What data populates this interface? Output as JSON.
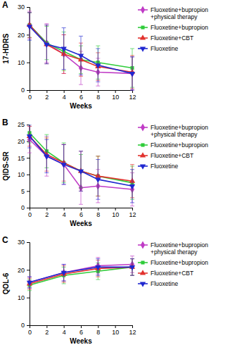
{
  "chart_data": [
    {
      "type": "line",
      "title": "A",
      "x_label": "Weeks",
      "y_label": "17-HDRS",
      "x": [
        0,
        2,
        4,
        6,
        8,
        12
      ],
      "xlim": [
        0,
        12
      ],
      "xticks": [
        0,
        2,
        4,
        6,
        8,
        10,
        12
      ],
      "ylim": [
        0,
        30
      ],
      "yticks": [
        0,
        10,
        20,
        30
      ],
      "grid": false,
      "legend": "right",
      "series": [
        {
          "name": "Fluoxetine+bupropion+physical therapy",
          "color": "#c03cc6",
          "marker": "diamond",
          "values": [
            23.5,
            17,
            13,
            8,
            6.5,
            6
          ],
          "errors": [
            5,
            7,
            7,
            6,
            5,
            6
          ]
        },
        {
          "name": "Fluoxetine+bupropion",
          "color": "#2fcc3a",
          "marker": "square",
          "values": [
            23.5,
            17,
            14,
            11,
            10,
            8
          ],
          "errors": [
            4.5,
            6,
            7,
            5,
            6,
            7
          ]
        },
        {
          "name": "Fluoxetine+CBT",
          "color": "#e2322e",
          "marker": "triangle",
          "values": [
            23.5,
            16.5,
            13,
            11,
            8.5,
            6.5
          ],
          "errors": [
            4.5,
            7,
            7,
            6,
            5,
            6
          ]
        },
        {
          "name": "Fluoxetine",
          "color": "#2028d0",
          "marker": "triangle-down",
          "values": [
            23,
            16.5,
            15,
            12.5,
            9,
            6
          ],
          "errors": [
            5,
            7,
            7.5,
            7,
            6,
            6
          ]
        }
      ]
    },
    {
      "type": "line",
      "title": "B",
      "x_label": "Weeks",
      "y_label": "QIDS-SR",
      "x": [
        0,
        2,
        4,
        6,
        8,
        12
      ],
      "xlim": [
        0,
        12
      ],
      "xticks": [
        0,
        2,
        4,
        6,
        8,
        10,
        12
      ],
      "ylim": [
        0,
        25
      ],
      "yticks": [
        0,
        5,
        10,
        15,
        20,
        25
      ],
      "grid": false,
      "legend": "right",
      "series": [
        {
          "name": "Fluoxetine+bupropion+physical therapy",
          "color": "#c03cc6",
          "marker": "diamond",
          "values": [
            20.5,
            15.5,
            13,
            6,
            6.5,
            5.5
          ],
          "errors": [
            4,
            6,
            6,
            5,
            5,
            5
          ]
        },
        {
          "name": "Fluoxetine+bupropion",
          "color": "#2fcc3a",
          "marker": "square",
          "values": [
            22.5,
            17,
            13.5,
            11,
            9.5,
            7.5
          ],
          "errors": [
            3,
            5,
            6,
            5,
            6,
            5
          ]
        },
        {
          "name": "Fluoxetine+CBT",
          "color": "#e2322e",
          "marker": "triangle",
          "values": [
            21.5,
            16,
            13.5,
            11,
            9.5,
            8
          ],
          "errors": [
            3,
            5,
            5.5,
            6,
            6,
            5
          ]
        },
        {
          "name": "Fluoxetine",
          "color": "#2028d0",
          "marker": "triangle-down",
          "values": [
            21.5,
            15.5,
            13,
            11,
            8.5,
            6.5
          ],
          "errors": [
            3.5,
            5,
            6,
            6,
            6,
            5
          ]
        }
      ]
    },
    {
      "type": "line",
      "title": "C",
      "x_label": "Weeks",
      "y_label": "QOL-6",
      "x": [
        0,
        4,
        8,
        12
      ],
      "xlim": [
        0,
        12
      ],
      "xticks": [
        0,
        2,
        4,
        6,
        8,
        10,
        12
      ],
      "ylim": [
        0,
        30
      ],
      "yticks": [
        0,
        10,
        20,
        30
      ],
      "grid": false,
      "legend": "right",
      "series": [
        {
          "name": "Fluoxetine+bupropion+physical therapy",
          "color": "#c03cc6",
          "marker": "diamond",
          "values": [
            15.5,
            19,
            21.5,
            22
          ],
          "errors": [
            2,
            3,
            3,
            3
          ]
        },
        {
          "name": "Fluoxetine+bupropion",
          "color": "#2fcc3a",
          "marker": "square",
          "values": [
            14.5,
            18,
            19.5,
            21
          ],
          "errors": [
            2,
            3,
            3,
            3
          ]
        },
        {
          "name": "Fluoxetine+CBT",
          "color": "#e2322e",
          "marker": "triangle",
          "values": [
            15,
            18.5,
            20.5,
            21
          ],
          "errors": [
            2,
            3,
            3,
            3
          ]
        },
        {
          "name": "Fluoxetine",
          "color": "#2028d0",
          "marker": "triangle-down",
          "values": [
            15.5,
            19,
            21,
            21
          ],
          "errors": [
            2,
            3,
            3,
            3
          ]
        }
      ]
    }
  ]
}
